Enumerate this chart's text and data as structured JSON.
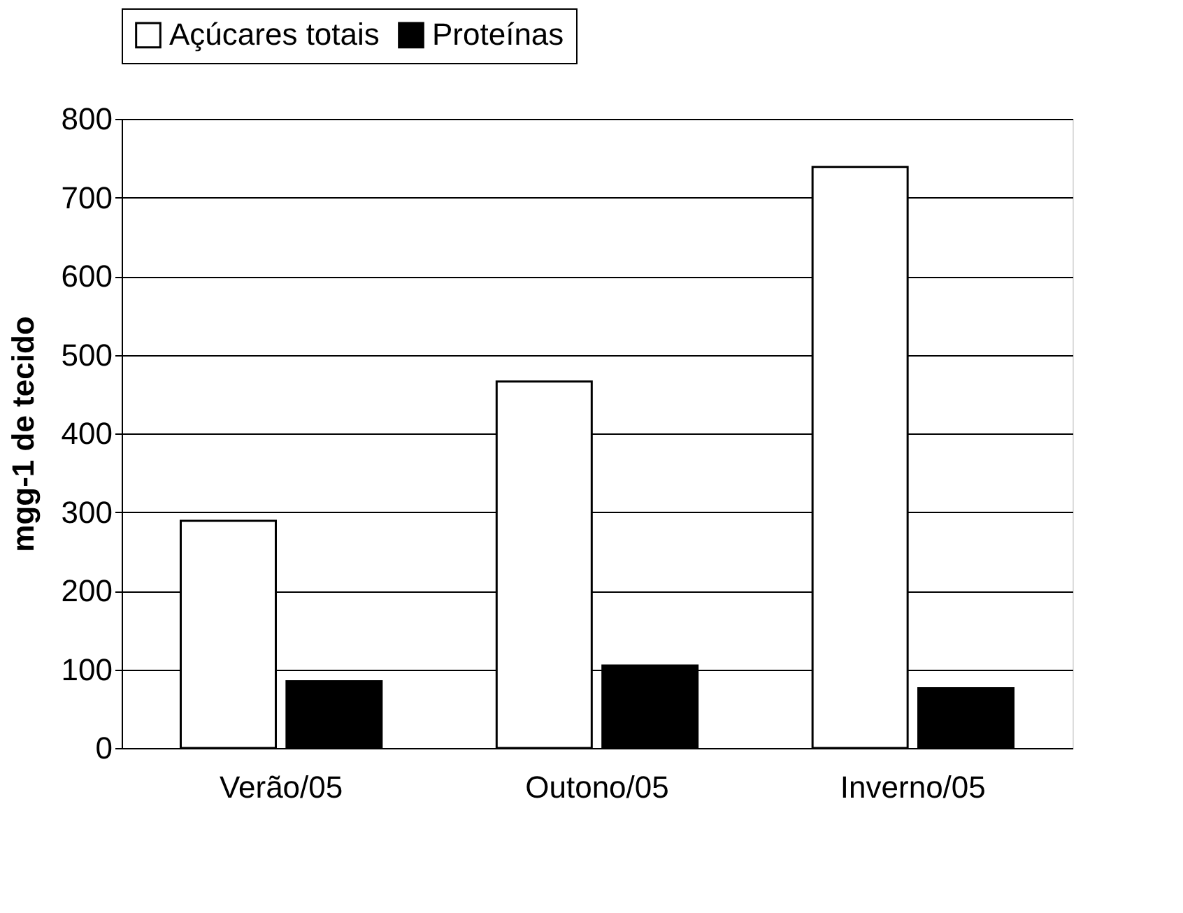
{
  "chart_data": {
    "type": "bar",
    "ylabel": "mgg-1 de tecido",
    "categories": [
      "Verão/05",
      "Outono/05",
      "Inverno/05"
    ],
    "series": [
      {
        "name": "Açúcares totais",
        "color": "#ffffff",
        "values": [
          289,
          466,
          739
        ]
      },
      {
        "name": "Proteínas",
        "color": "#000000",
        "values": [
          85,
          105,
          76
        ]
      }
    ],
    "ylim": [
      0,
      800
    ],
    "yticks": [
      0,
      100,
      200,
      300,
      400,
      500,
      600,
      700,
      800
    ],
    "grid": "y",
    "legend": "top"
  }
}
